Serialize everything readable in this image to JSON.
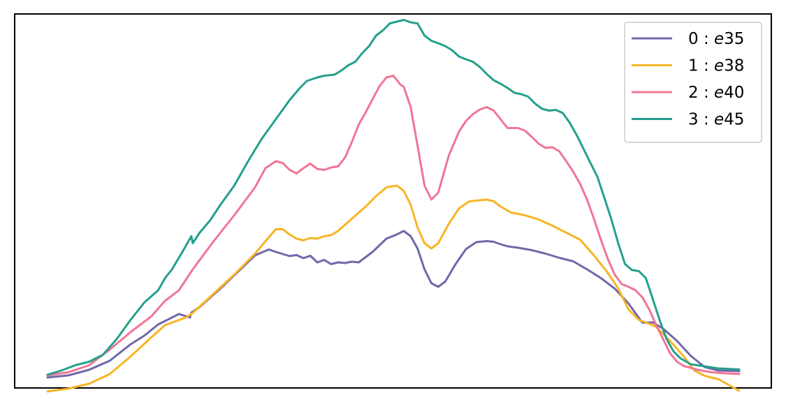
{
  "chart_data": {
    "type": "line",
    "title": "",
    "xlabel": "",
    "ylabel": "",
    "grid": false,
    "legend_position": "top-right",
    "xlim": [
      0,
      100
    ],
    "ylim": [
      0,
      100
    ],
    "series": [
      {
        "name_prefix": "0 : ",
        "name_italic": "e",
        "name_suffix": "35",
        "color": "#7068a8",
        "points": [
          [
            0,
            0.0
          ],
          [
            3,
            0.6
          ],
          [
            6,
            2.2
          ],
          [
            9,
            4.8
          ],
          [
            12,
            9.5
          ],
          [
            14,
            12.0
          ],
          [
            16,
            15.2
          ],
          [
            19,
            18.2
          ],
          [
            20.6,
            17.2
          ],
          [
            20.8,
            18.6
          ],
          [
            22,
            20.2
          ],
          [
            25,
            25.5
          ],
          [
            28,
            31.2
          ],
          [
            30,
            35.0
          ],
          [
            32,
            36.7
          ],
          [
            33,
            36.0
          ],
          [
            35,
            34.8
          ],
          [
            36,
            35.1
          ],
          [
            37,
            34.2
          ],
          [
            38,
            34.9
          ],
          [
            39,
            33.0
          ],
          [
            40,
            33.7
          ],
          [
            41,
            32.5
          ],
          [
            42,
            33.0
          ],
          [
            43,
            32.8
          ],
          [
            44,
            33.2
          ],
          [
            45,
            33.0
          ],
          [
            47,
            36.0
          ],
          [
            49,
            39.8
          ],
          [
            50.5,
            41.0
          ],
          [
            51.5,
            42.0
          ],
          [
            52.5,
            40.5
          ],
          [
            53.5,
            37.0
          ],
          [
            54.5,
            31.0
          ],
          [
            55.5,
            27.0
          ],
          [
            56.5,
            26.0
          ],
          [
            57.5,
            27.5
          ],
          [
            59,
            32.5
          ],
          [
            60.5,
            36.8
          ],
          [
            62,
            38.8
          ],
          [
            63.5,
            39.1
          ],
          [
            64.5,
            38.9
          ],
          [
            65.5,
            38.2
          ],
          [
            66.5,
            37.6
          ],
          [
            68,
            37.2
          ],
          [
            70,
            36.5
          ],
          [
            72,
            35.5
          ],
          [
            74,
            34.3
          ],
          [
            76,
            33.3
          ],
          [
            78,
            31.0
          ],
          [
            80,
            28.5
          ],
          [
            82,
            25.5
          ],
          [
            84,
            21.2
          ],
          [
            86,
            15.7
          ],
          [
            87.5,
            15.8
          ],
          [
            89,
            14.0
          ],
          [
            91,
            10.5
          ],
          [
            93,
            6.2
          ],
          [
            95,
            3.0
          ],
          [
            97,
            2.0
          ],
          [
            100,
            1.8
          ]
        ]
      },
      {
        "name_prefix": "1 : ",
        "name_italic": "e",
        "name_suffix": "38",
        "color": "#f8b425",
        "points": [
          [
            0,
            -4.0
          ],
          [
            3,
            -3.2
          ],
          [
            6,
            -1.8
          ],
          [
            9,
            1.0
          ],
          [
            12,
            6.0
          ],
          [
            15,
            11.5
          ],
          [
            17,
            15.0
          ],
          [
            20,
            17.2
          ],
          [
            21,
            18.5
          ],
          [
            24,
            24.0
          ],
          [
            27,
            29.5
          ],
          [
            30,
            35.5
          ],
          [
            32,
            40.2
          ],
          [
            33,
            42.5
          ],
          [
            34,
            42.5
          ],
          [
            35,
            41.0
          ],
          [
            36,
            39.8
          ],
          [
            37,
            39.3
          ],
          [
            38,
            40.0
          ],
          [
            39,
            39.8
          ],
          [
            40,
            40.5
          ],
          [
            41,
            40.8
          ],
          [
            42,
            42.0
          ],
          [
            44,
            45.5
          ],
          [
            46,
            49.0
          ],
          [
            47.5,
            52.0
          ],
          [
            49,
            54.5
          ],
          [
            50.5,
            55.0
          ],
          [
            51.5,
            53.5
          ],
          [
            52.5,
            49.5
          ],
          [
            53.5,
            43.0
          ],
          [
            54.5,
            38.5
          ],
          [
            55.5,
            37.0
          ],
          [
            56.5,
            38.5
          ],
          [
            58,
            44.0
          ],
          [
            59.5,
            48.5
          ],
          [
            61,
            50.5
          ],
          [
            62.5,
            50.8
          ],
          [
            63.5,
            51.0
          ],
          [
            64.5,
            50.5
          ],
          [
            65.5,
            49.0
          ],
          [
            67,
            47.3
          ],
          [
            69,
            46.5
          ],
          [
            71,
            45.3
          ],
          [
            73,
            43.5
          ],
          [
            75,
            41.5
          ],
          [
            77,
            39.5
          ],
          [
            79,
            35.0
          ],
          [
            81,
            30.0
          ],
          [
            82.5,
            25.5
          ],
          [
            84,
            19.5
          ],
          [
            85.5,
            16.5
          ],
          [
            86.5,
            15.8
          ],
          [
            88,
            14.5
          ],
          [
            90,
            10.5
          ],
          [
            92,
            6.0
          ],
          [
            93.5,
            2.0
          ],
          [
            95,
            0.5
          ],
          [
            97,
            -0.5
          ],
          [
            100,
            -3.8
          ]
        ]
      },
      {
        "name_prefix": "2 : ",
        "name_italic": "e",
        "name_suffix": "40",
        "color": "#f07595",
        "points": [
          [
            0,
            0.6
          ],
          [
            3,
            1.5
          ],
          [
            6,
            3.5
          ],
          [
            9,
            8.0
          ],
          [
            12,
            13.0
          ],
          [
            15,
            17.5
          ],
          [
            17,
            22.0
          ],
          [
            19,
            25.0
          ],
          [
            21,
            31.0
          ],
          [
            24,
            39.0
          ],
          [
            27,
            46.5
          ],
          [
            30,
            54.5
          ],
          [
            31.5,
            60.0
          ],
          [
            33,
            62.0
          ],
          [
            34,
            61.5
          ],
          [
            35,
            59.5
          ],
          [
            36,
            58.5
          ],
          [
            37,
            60.0
          ],
          [
            38,
            61.3
          ],
          [
            39,
            59.8
          ],
          [
            40,
            59.5
          ],
          [
            41,
            60.2
          ],
          [
            42,
            60.5
          ],
          [
            43,
            63.0
          ],
          [
            44,
            67.5
          ],
          [
            45,
            72.5
          ],
          [
            46,
            76.0
          ],
          [
            47,
            79.8
          ],
          [
            48,
            83.5
          ],
          [
            49,
            86.0
          ],
          [
            50,
            86.5
          ],
          [
            51,
            84.0
          ],
          [
            51.5,
            83.3
          ],
          [
            52.5,
            77.5
          ],
          [
            53.5,
            66.5
          ],
          [
            54.5,
            55.0
          ],
          [
            55.5,
            51.0
          ],
          [
            56.5,
            53.0
          ],
          [
            58,
            63.5
          ],
          [
            59.5,
            70.5
          ],
          [
            60.5,
            73.5
          ],
          [
            61.5,
            75.5
          ],
          [
            62.5,
            76.8
          ],
          [
            63.5,
            77.5
          ],
          [
            64.5,
            76.5
          ],
          [
            65.5,
            74.0
          ],
          [
            66.5,
            71.5
          ],
          [
            68,
            71.5
          ],
          [
            69,
            70.8
          ],
          [
            70,
            69.0
          ],
          [
            71,
            67.0
          ],
          [
            72,
            65.8
          ],
          [
            73,
            66.0
          ],
          [
            74,
            64.8
          ],
          [
            75,
            62.0
          ],
          [
            76,
            59.0
          ],
          [
            77,
            55.5
          ],
          [
            78,
            51.0
          ],
          [
            79,
            45.5
          ],
          [
            80,
            39.5
          ],
          [
            81,
            34.0
          ],
          [
            82,
            29.5
          ],
          [
            83,
            26.8
          ],
          [
            84,
            26.0
          ],
          [
            85,
            25.0
          ],
          [
            86,
            23.0
          ],
          [
            87,
            19.5
          ],
          [
            88,
            15.0
          ],
          [
            89,
            11.0
          ],
          [
            90,
            7.0
          ],
          [
            91,
            4.5
          ],
          [
            92,
            3.3
          ],
          [
            94,
            2.2
          ],
          [
            96,
            1.5
          ],
          [
            98,
            1.2
          ],
          [
            100,
            1.0
          ]
        ]
      },
      {
        "name_prefix": "3 : ",
        "name_italic": "e",
        "name_suffix": "45",
        "color": "#23a08c",
        "points": [
          [
            0,
            0.8
          ],
          [
            2,
            2.0
          ],
          [
            4,
            3.5
          ],
          [
            6,
            4.5
          ],
          [
            8,
            6.5
          ],
          [
            10,
            11.0
          ],
          [
            12,
            16.5
          ],
          [
            14,
            21.5
          ],
          [
            16,
            25.0
          ],
          [
            17,
            28.5
          ],
          [
            18,
            31.0
          ],
          [
            19.5,
            36.0
          ],
          [
            20.8,
            40.5
          ],
          [
            21,
            38.5
          ],
          [
            22,
            41.5
          ],
          [
            23.5,
            45.0
          ],
          [
            25,
            49.5
          ],
          [
            27,
            55.0
          ],
          [
            29,
            62.0
          ],
          [
            31,
            68.5
          ],
          [
            33,
            74.0
          ],
          [
            35,
            79.5
          ],
          [
            36.5,
            83.0
          ],
          [
            37.5,
            85.0
          ],
          [
            39,
            86.0
          ],
          [
            40,
            86.5
          ],
          [
            41.5,
            86.8
          ],
          [
            42.5,
            88.0
          ],
          [
            43.5,
            89.5
          ],
          [
            44.5,
            90.5
          ],
          [
            45.5,
            93.0
          ],
          [
            46.5,
            95.0
          ],
          [
            47.5,
            98.0
          ],
          [
            48.5,
            99.5
          ],
          [
            49.5,
            101.5
          ],
          [
            50.5,
            102.0
          ],
          [
            51.5,
            102.5
          ],
          [
            52.5,
            101.8
          ],
          [
            53.5,
            101.5
          ],
          [
            54.5,
            98.0
          ],
          [
            55.5,
            96.5
          ],
          [
            56.5,
            95.8
          ],
          [
            57.5,
            95.0
          ],
          [
            58.5,
            93.8
          ],
          [
            59.5,
            92.0
          ],
          [
            60.5,
            91.2
          ],
          [
            61.5,
            90.5
          ],
          [
            62.5,
            89.0
          ],
          [
            63.5,
            87.0
          ],
          [
            64.5,
            85.2
          ],
          [
            65.5,
            84.2
          ],
          [
            66.5,
            83.0
          ],
          [
            67.5,
            81.6
          ],
          [
            68.5,
            81.2
          ],
          [
            69.5,
            80.5
          ],
          [
            70.5,
            78.5
          ],
          [
            71.5,
            77.0
          ],
          [
            72.5,
            76.5
          ],
          [
            73.5,
            76.7
          ],
          [
            74.5,
            75.8
          ],
          [
            75.5,
            73.0
          ],
          [
            76.5,
            69.5
          ],
          [
            77.5,
            65.5
          ],
          [
            78.5,
            61.5
          ],
          [
            79.5,
            57.5
          ],
          [
            80.5,
            51.5
          ],
          [
            81.5,
            45.5
          ],
          [
            82.5,
            38.5
          ],
          [
            83.5,
            32.5
          ],
          [
            84.5,
            30.8
          ],
          [
            85.5,
            30.5
          ],
          [
            86.5,
            28.5
          ],
          [
            87.5,
            22.5
          ],
          [
            88.5,
            16.5
          ],
          [
            89.5,
            11.0
          ],
          [
            90.5,
            7.5
          ],
          [
            91.5,
            5.5
          ],
          [
            93,
            3.8
          ],
          [
            95,
            3.2
          ],
          [
            97,
            2.6
          ],
          [
            100,
            2.3
          ]
        ]
      }
    ]
  }
}
